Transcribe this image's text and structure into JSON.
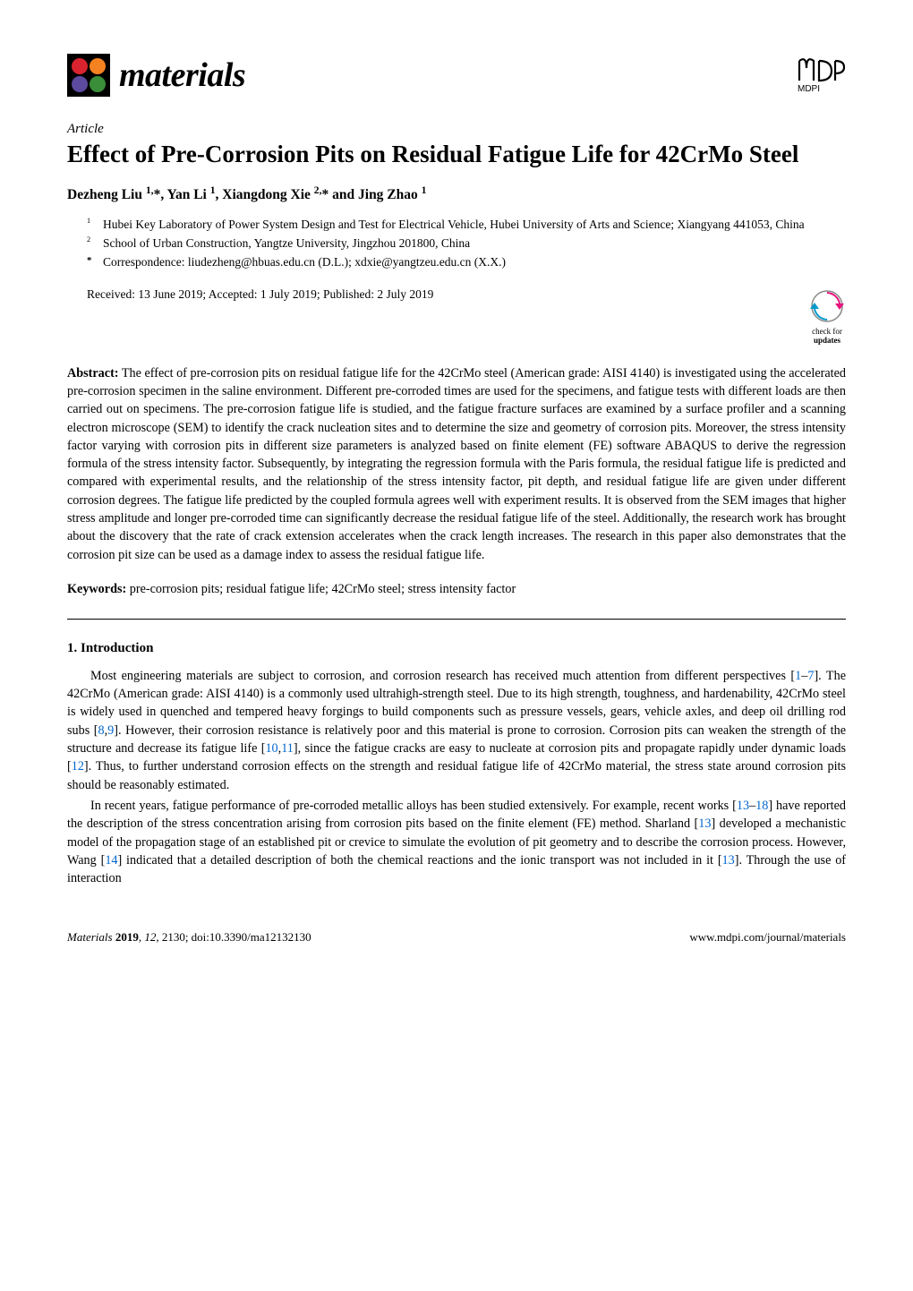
{
  "journal": {
    "name": "materials",
    "logo_colors": {
      "c1": "#d9232e",
      "c2": "#f58220",
      "c3": "#5b4a9e",
      "c4": "#3a8e3a"
    },
    "publisher_logo_text": "MDPI"
  },
  "article_label": "Article",
  "title": "Effect of Pre-Corrosion Pits on Residual Fatigue Life for 42CrMo Steel",
  "authors_html": "Dezheng Liu <sup>1,</sup>*, Yan Li <sup>1</sup>, Xiangdong Xie <sup>2,</sup>* and Jing Zhao <sup>1</sup>",
  "affiliations": [
    {
      "num": "1",
      "text": "Hubei Key Laboratory of Power System Design and Test for Electrical Vehicle, Hubei University of Arts and Science; Xiangyang 441053, China"
    },
    {
      "num": "2",
      "text": "School of Urban Construction, Yangtze University, Jingzhou 201800, China"
    },
    {
      "num": "*",
      "text": "Correspondence: liudezheng@hbuas.edu.cn (D.L.); xdxie@yangtzeu.edu.cn (X.X.)"
    }
  ],
  "received": "Received: 13 June 2019; Accepted: 1 July 2019; Published: 2 July 2019",
  "check_updates": {
    "label": "check for",
    "bold": "updates",
    "color": "#0099cc"
  },
  "abstract_label": "Abstract:",
  "abstract": "The effect of pre-corrosion pits on residual fatigue life for the 42CrMo steel (American grade: AISI 4140) is investigated using the accelerated pre-corrosion specimen in the saline environment. Different pre-corroded times are used for the specimens, and fatigue tests with different loads are then carried out on specimens. The pre-corrosion fatigue life is studied, and the fatigue fracture surfaces are examined by a surface profiler and a scanning electron microscope (SEM) to identify the crack nucleation sites and to determine the size and geometry of corrosion pits. Moreover, the stress intensity factor varying with corrosion pits in different size parameters is analyzed based on finite element (FE) software ABAQUS to derive the regression formula of the stress intensity factor. Subsequently, by integrating the regression formula with the Paris formula, the residual fatigue life is predicted and compared with experimental results, and the relationship of the stress intensity factor, pit depth, and residual fatigue life are given under different corrosion degrees. The fatigue life predicted by the coupled formula agrees well with experiment results. It is observed from the SEM images that higher stress amplitude and longer pre-corroded time can significantly decrease the residual fatigue life of the steel. Additionally, the research work has brought about the discovery that the rate of crack extension accelerates when the crack length increases. The research in this paper also demonstrates that the corrosion pit size can be used as a damage index to assess the residual fatigue life.",
  "keywords_label": "Keywords:",
  "keywords": "pre-corrosion pits; residual fatigue life; 42CrMo steel; stress intensity factor",
  "section_heading": "1. Introduction",
  "body": [
    "Most engineering materials are subject to corrosion, and corrosion research has received much attention from different perspectives [<span class=\"ref\">1</span>–<span class=\"ref\">7</span>]. The 42CrMo (American grade: AISI 4140) is a commonly used ultrahigh-strength steel. Due to its high strength, toughness, and hardenability, 42CrMo steel is widely used in quenched and tempered heavy forgings to build components such as pressure vessels, gears, vehicle axles, and deep oil drilling rod subs [<span class=\"ref\">8</span>,<span class=\"ref\">9</span>]. However, their corrosion resistance is relatively poor and this material is prone to corrosion. Corrosion pits can weaken the strength of the structure and decrease its fatigue life [<span class=\"ref\">10</span>,<span class=\"ref\">11</span>], since the fatigue cracks are easy to nucleate at corrosion pits and propagate rapidly under dynamic loads [<span class=\"ref\">12</span>]. Thus, to further understand corrosion effects on the strength and residual fatigue life of 42CrMo material, the stress state around corrosion pits should be reasonably estimated.",
    "In recent years, fatigue performance of pre-corroded metallic alloys has been studied extensively. For example, recent works [<span class=\"ref\">13</span>–<span class=\"ref\">18</span>] have reported the description of the stress concentration arising from corrosion pits based on the finite element (FE) method. Sharland [<span class=\"ref\">13</span>] developed a mechanistic model of the propagation stage of an established pit or crevice to simulate the evolution of pit geometry and to describe the corrosion process. However, Wang [<span class=\"ref\">14</span>] indicated that a detailed description of both the chemical reactions and the ionic transport was not included in it [<span class=\"ref\">13</span>]. Through the use of interaction"
  ],
  "footer": {
    "left_html": "<span class=\"jn\">Materials</span> <b>2019</b>, <i>12</i>, 2130; doi:10.3390/ma12132130",
    "right": "www.mdpi.com/journal/materials"
  }
}
